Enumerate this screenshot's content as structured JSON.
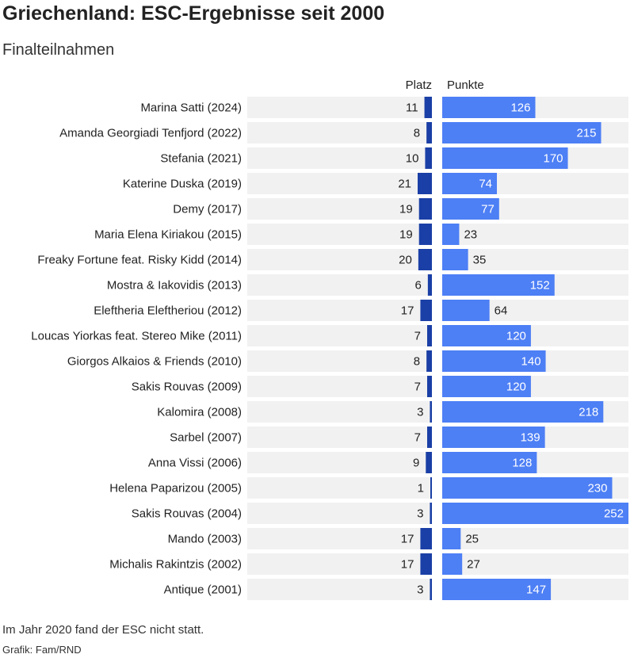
{
  "title": "Griechenland: ESC-Ergebnisse seit 2000",
  "subtitle": "Finalteilnahmen",
  "note": "Im Jahr 2020 fand der ESC nicht statt.",
  "source": "Grafik: Fam/RND",
  "colors": {
    "platz_bar": "#1a3fa6",
    "punkte_bar": "#4d7ff5",
    "track": "#f1f1f1",
    "text": "#222222",
    "label_inside": "#ffffff"
  },
  "chart_data": {
    "type": "bar",
    "orientation": "horizontal",
    "columns": [
      "Platz",
      "Punkte"
    ],
    "categories": [
      "Marina Satti (2024)",
      "Amanda Georgiadi Tenfjord (2022)",
      "Stefania (2021)",
      "Katerine Duska (2019)",
      "Demy (2017)",
      "Maria Elena Kiriakou (2015)",
      "Freaky Fortune feat. Risky Kidd (2014)",
      "Mostra & Iakovidis (2013)",
      "Eleftheria Eleftheriou (2012)",
      "Loucas Yiorkas feat. Stereo Mike (2011)",
      "Giorgos Alkaios & Friends (2010)",
      "Sakis Rouvas (2009)",
      "Kalomira (2008)",
      "Sarbel (2007)",
      "Anna Vissi (2006)",
      "Helena Paparizou (2005)",
      "Sakis Rouvas (2004)",
      "Mando (2003)",
      "Michalis Rakintzis (2002)",
      "Antique (2001)"
    ],
    "series": [
      {
        "name": "Platz",
        "values": [
          11,
          8,
          10,
          21,
          19,
          19,
          20,
          6,
          17,
          7,
          8,
          7,
          3,
          7,
          9,
          1,
          3,
          17,
          17,
          3
        ]
      },
      {
        "name": "Punkte",
        "values": [
          126,
          215,
          170,
          74,
          77,
          23,
          35,
          152,
          64,
          120,
          140,
          120,
          218,
          139,
          128,
          230,
          252,
          25,
          27,
          147
        ]
      }
    ],
    "platz_max": 27,
    "punkte_max": 252
  }
}
